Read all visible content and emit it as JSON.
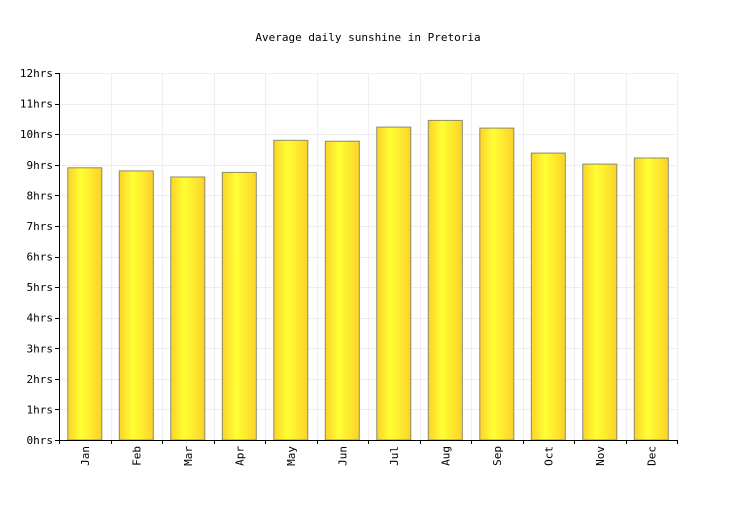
{
  "chart_data": {
    "type": "bar",
    "title": "Average daily sunshine in Pretoria",
    "xlabel": "",
    "ylabel": "",
    "categories": [
      "Jan",
      "Feb",
      "Mar",
      "Apr",
      "May",
      "Jun",
      "Jul",
      "Aug",
      "Sep",
      "Oct",
      "Nov",
      "Dec"
    ],
    "values": [
      8.9,
      8.8,
      8.6,
      8.75,
      9.8,
      9.77,
      10.23,
      10.45,
      10.2,
      9.38,
      9.02,
      9.22
    ],
    "ylim": [
      0,
      12
    ],
    "y_ticks": [
      0,
      1,
      2,
      3,
      4,
      5,
      6,
      7,
      8,
      9,
      10,
      11,
      12
    ],
    "y_tick_labels": [
      "0hrs",
      "1hrs",
      "2hrs",
      "3hrs",
      "4hrs",
      "5hrs",
      "6hrs",
      "7hrs",
      "8hrs",
      "9hrs",
      "10hrs",
      "11hrs",
      "12hrs"
    ],
    "grid": true,
    "legend": "none",
    "bar_color_light": "#ffff33",
    "bar_color_dark": "#fcd22a",
    "bar_stroke": "#8c8c66",
    "grid_color": "#eeeeee",
    "axis_color": "#000000"
  }
}
